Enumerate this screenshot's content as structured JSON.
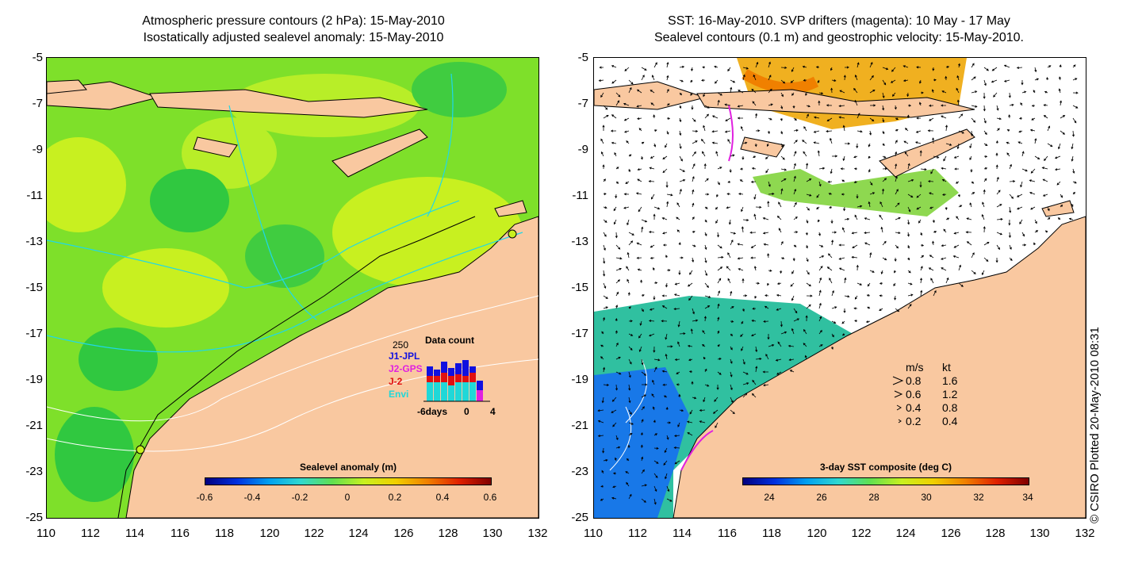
{
  "left_panel": {
    "title_line1": "Atmospheric pressure contours (2 hPa): 15-May-2010",
    "title_line2": "Isostatically adjusted sealevel anomaly: 15-May-2010",
    "colorbar": {
      "title": "Sealevel anomaly (m)",
      "labels": [
        "-0.6",
        "-0.4",
        "-0.2",
        "0",
        "0.2",
        "0.4",
        "0.6"
      ]
    },
    "inset": {
      "ymax_label": "250",
      "title": "Data count",
      "series": [
        {
          "name": "J1-JPL",
          "color": "#1010e0"
        },
        {
          "name": "J2-GPS",
          "color": "#e020e0"
        },
        {
          "name": "J-2",
          "color": "#e01010"
        },
        {
          "name": "Envi",
          "color": "#20d8d8"
        }
      ],
      "x_labels": [
        "-6days",
        "0",
        "4"
      ]
    }
  },
  "right_panel": {
    "title_line1": "SST: 16-May-2010. SVP drifters (magenta): 10 May - 17 May",
    "title_line2": "Sealevel contours (0.1 m) and geostrophic velocity: 15-May-2010.",
    "colorbar": {
      "title": "3-day SST composite (deg C)",
      "labels": [
        "24",
        "26",
        "28",
        "30",
        "32",
        "34"
      ]
    },
    "velocity_legend": {
      "header_ms": "m/s",
      "header_kt": "kt",
      "rows": [
        {
          "ms": "0.8",
          "kt": "1.6"
        },
        {
          "ms": "0.6",
          "kt": "1.2"
        },
        {
          "ms": "0.4",
          "kt": "0.8"
        },
        {
          "ms": "0.2",
          "kt": "0.4"
        }
      ]
    },
    "credit": "© CSIRO Plotted 20-May-2010 08:31"
  },
  "axes": {
    "y_labels": [
      "-5",
      "-7",
      "-9",
      "-11",
      "-13",
      "-15",
      "-17",
      "-19",
      "-21",
      "-23",
      "-25"
    ],
    "x_labels": [
      "110",
      "112",
      "114",
      "116",
      "118",
      "120",
      "122",
      "124",
      "126",
      "128",
      "130",
      "132"
    ]
  },
  "colors": {
    "land": "#f9c8a0",
    "ocean_base": "#7ee02a",
    "ocean_bright": "#c8f020",
    "ocean_dark": "#30c840",
    "sst_cool": "#1878e8",
    "sst_mid": "#30c0a0",
    "sst_warm": "#f0b020"
  }
}
